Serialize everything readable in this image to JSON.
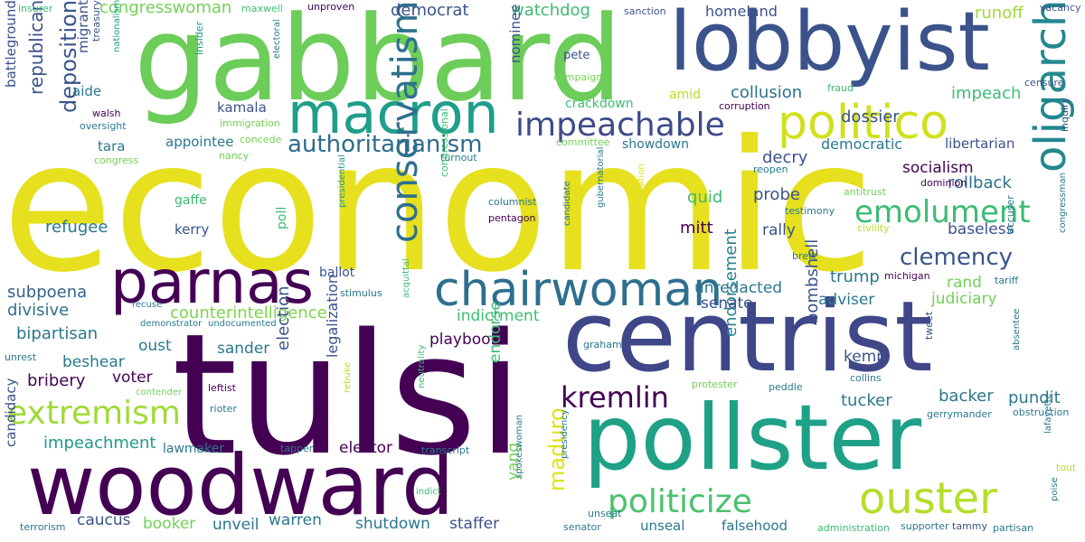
{
  "word_cloud": {
    "words": [
      {
        "text": "economic",
        "color": "#e6e01e"
      },
      {
        "text": "tulsi",
        "color": "#440154"
      },
      {
        "text": "gabbard",
        "color": "#6ccd59"
      },
      {
        "text": "centrist",
        "color": "#3f4788"
      },
      {
        "text": "pollster",
        "color": "#1fa187"
      },
      {
        "text": "woodward",
        "color": "#440154"
      },
      {
        "text": "lobbyist",
        "color": "#3b528b"
      },
      {
        "text": "parnas",
        "color": "#440154"
      },
      {
        "text": "macron",
        "color": "#1f9e89"
      },
      {
        "text": "chairwoman",
        "color": "#2e6f8e"
      },
      {
        "text": "politico",
        "color": "#d0e11c"
      },
      {
        "text": "ouster",
        "color": "#b5de2b"
      },
      {
        "text": "oligarch",
        "color": "#23888e"
      },
      {
        "text": "conservatism",
        "color": "#2d708e"
      },
      {
        "text": "impeachable",
        "color": "#3e4a89"
      },
      {
        "text": "extremism",
        "color": "#a0da39"
      },
      {
        "text": "politicize",
        "color": "#4ac16d"
      },
      {
        "text": "emolument",
        "color": "#3dbc74"
      },
      {
        "text": "kremlin",
        "color": "#440154"
      },
      {
        "text": "authoritarianism",
        "color": "#2f6b8e"
      },
      {
        "text": "clemency",
        "color": "#39568c"
      },
      {
        "text": "deposition",
        "color": "#3a548c"
      },
      {
        "text": "maduro",
        "color": "#dde318"
      },
      {
        "text": "republican",
        "color": "#3b528b"
      },
      {
        "text": "counterintelligence",
        "color": "#7fd34e"
      },
      {
        "text": "endorsement",
        "color": "#26828e"
      },
      {
        "text": "subpoena",
        "color": "#33638d"
      },
      {
        "text": "refugee",
        "color": "#2a788e"
      },
      {
        "text": "bipartisan",
        "color": "#2a788e"
      },
      {
        "text": "divisive",
        "color": "#2c728e"
      },
      {
        "text": "impeachment",
        "color": "#1f9a8a"
      },
      {
        "text": "bribery",
        "color": "#440154"
      },
      {
        "text": "election",
        "color": "#3b528b"
      },
      {
        "text": "democrat",
        "color": "#3b528b"
      },
      {
        "text": "watchdog",
        "color": "#3dbc74"
      },
      {
        "text": "congresswoman",
        "color": "#73d056"
      },
      {
        "text": "homeland",
        "color": "#3b528b"
      },
      {
        "text": "dossier",
        "color": "#3b528b"
      },
      {
        "text": "runoff",
        "color": "#a0da39"
      },
      {
        "text": "collusion",
        "color": "#2d708e"
      },
      {
        "text": "impeach",
        "color": "#3dbc74"
      },
      {
        "text": "libertarian",
        "color": "#3b528b"
      },
      {
        "text": "democratic",
        "color": "#2a788e"
      },
      {
        "text": "socialism",
        "color": "#440154"
      },
      {
        "text": "rollback",
        "color": "#2d708e"
      },
      {
        "text": "baseless",
        "color": "#3b528b"
      },
      {
        "text": "decry",
        "color": "#3b528b"
      },
      {
        "text": "probe",
        "color": "#3b528b"
      },
      {
        "text": "quid",
        "color": "#3dbc74"
      },
      {
        "text": "rally",
        "color": "#3b528b"
      },
      {
        "text": "mitt",
        "color": "#440154"
      },
      {
        "text": "trump",
        "color": "#2a788e"
      },
      {
        "text": "adviser",
        "color": "#2a788e"
      },
      {
        "text": "judiciary",
        "color": "#73d056"
      },
      {
        "text": "rand",
        "color": "#73d056"
      },
      {
        "text": "senate",
        "color": "#3b528b"
      },
      {
        "text": "unredacted",
        "color": "#2a788e"
      },
      {
        "text": "indictment",
        "color": "#3dbc74"
      },
      {
        "text": "playbook",
        "color": "#440154"
      },
      {
        "text": "endorse",
        "color": "#3dbc74"
      },
      {
        "text": "legalization",
        "color": "#3b528b"
      },
      {
        "text": "bombshell",
        "color": "#3b528b"
      },
      {
        "text": "kemp",
        "color": "#3b528b"
      },
      {
        "text": "tucker",
        "color": "#2a788e"
      },
      {
        "text": "backer",
        "color": "#2a788e"
      },
      {
        "text": "pundit",
        "color": "#2a788e"
      },
      {
        "text": "elector",
        "color": "#440154"
      },
      {
        "text": "voter",
        "color": "#440154"
      },
      {
        "text": "beshear",
        "color": "#2a788e"
      },
      {
        "text": "oust",
        "color": "#2a788e"
      },
      {
        "text": "sander",
        "color": "#2a788e"
      },
      {
        "text": "booker",
        "color": "#73d056"
      },
      {
        "text": "caucus",
        "color": "#3b528b"
      },
      {
        "text": "unveil",
        "color": "#2a788e"
      },
      {
        "text": "warren",
        "color": "#2a788e"
      },
      {
        "text": "shutdown",
        "color": "#2a788e"
      },
      {
        "text": "staffer",
        "color": "#3b528b"
      },
      {
        "text": "yang",
        "color": "#73d056"
      },
      {
        "text": "unseal",
        "color": "#2a788e"
      },
      {
        "text": "falsehood",
        "color": "#2a788e"
      },
      {
        "text": "candidacy",
        "color": "#3b528b"
      },
      {
        "text": "lawmaker",
        "color": "#2a788e"
      },
      {
        "text": "kamala",
        "color": "#3b528b"
      },
      {
        "text": "appointee",
        "color": "#2a788e"
      },
      {
        "text": "tara",
        "color": "#2a788e"
      },
      {
        "text": "aide",
        "color": "#2a788e"
      },
      {
        "text": "battleground",
        "color": "#3b528b"
      },
      {
        "text": "migrant",
        "color": "#3b528b"
      },
      {
        "text": "nominee",
        "color": "#3b528b"
      },
      {
        "text": "crackdown",
        "color": "#3dbc74"
      },
      {
        "text": "amid",
        "color": "#b5de2b"
      },
      {
        "text": "showdown",
        "color": "#2a788e"
      },
      {
        "text": "gaffe",
        "color": "#3dbc74"
      },
      {
        "text": "kerry",
        "color": "#3b528b"
      },
      {
        "text": "poll",
        "color": "#3dbc74"
      },
      {
        "text": "ballot",
        "color": "#3b528b"
      },
      {
        "text": "pete",
        "color": "#3b528b"
      },
      {
        "text": "insurer",
        "color": "#3dbc74"
      },
      {
        "text": "maxwell",
        "color": "#3dbc74"
      },
      {
        "text": "unproven",
        "color": "#440154"
      },
      {
        "text": "sanction",
        "color": "#3b528b"
      },
      {
        "text": "vacancy",
        "color": "#3b528b"
      },
      {
        "text": "treasury",
        "color": "#3b528b"
      },
      {
        "text": "nationalism",
        "color": "#1f9a8a"
      },
      {
        "text": "insider",
        "color": "#1f9a8a"
      },
      {
        "text": "electoral",
        "color": "#2a788e"
      },
      {
        "text": "campaign",
        "color": "#73d056"
      },
      {
        "text": "censure",
        "color": "#3b528b"
      },
      {
        "text": "fraud",
        "color": "#3dbc74"
      },
      {
        "text": "corruption",
        "color": "#440154"
      },
      {
        "text": "walsh",
        "color": "#440154"
      },
      {
        "text": "oversight",
        "color": "#2a788e"
      },
      {
        "text": "immigration",
        "color": "#73d056"
      },
      {
        "text": "concede",
        "color": "#73d056"
      },
      {
        "text": "committee",
        "color": "#73d056"
      },
      {
        "text": "congress",
        "color": "#73d056"
      },
      {
        "text": "nancy",
        "color": "#73d056"
      },
      {
        "text": "turnout",
        "color": "#2a788e"
      },
      {
        "text": "reopen",
        "color": "#2a788e"
      },
      {
        "text": "inquiry",
        "color": "#3b528b"
      },
      {
        "text": "dominion",
        "color": "#440154"
      },
      {
        "text": "antitrust",
        "color": "#73d056"
      },
      {
        "text": "testimony",
        "color": "#2a788e"
      },
      {
        "text": "congressional",
        "color": "#3dbc74"
      },
      {
        "text": "presidential",
        "color": "#1f9a8a"
      },
      {
        "text": "columnist",
        "color": "#2a788e"
      },
      {
        "text": "pentagon",
        "color": "#440154"
      },
      {
        "text": "candidate",
        "color": "#2a788e"
      },
      {
        "text": "gubernatorial",
        "color": "#2a788e"
      },
      {
        "text": "inauguration",
        "color": "#dde318"
      },
      {
        "text": "civility",
        "color": "#b5de2b"
      },
      {
        "text": "congressman",
        "color": "#2a788e"
      },
      {
        "text": "accuser",
        "color": "#2a788e"
      },
      {
        "text": "brett",
        "color": "#2a788e"
      },
      {
        "text": "michigan",
        "color": "#440154"
      },
      {
        "text": "tariff",
        "color": "#2a788e"
      },
      {
        "text": "stimulus",
        "color": "#2a788e"
      },
      {
        "text": "recuse",
        "color": "#2a788e"
      },
      {
        "text": "demonstrator",
        "color": "#2a788e"
      },
      {
        "text": "undocumented",
        "color": "#2a788e"
      },
      {
        "text": "acquittal",
        "color": "#3dbc74"
      },
      {
        "text": "graham",
        "color": "#2a788e"
      },
      {
        "text": "unrest",
        "color": "#2a788e"
      },
      {
        "text": "tweet",
        "color": "#3b528b"
      },
      {
        "text": "absentee",
        "color": "#2a788e"
      },
      {
        "text": "collins",
        "color": "#2a788e"
      },
      {
        "text": "protester",
        "color": "#73d056"
      },
      {
        "text": "peddle",
        "color": "#2a788e"
      },
      {
        "text": "contender",
        "color": "#73d056"
      },
      {
        "text": "leftist",
        "color": "#440154"
      },
      {
        "text": "rioter",
        "color": "#2a788e"
      },
      {
        "text": "rebuke",
        "color": "#b5de2b"
      },
      {
        "text": "neutrality",
        "color": "#3dbc74"
      },
      {
        "text": "gerrymander",
        "color": "#2a788e"
      },
      {
        "text": "obstruction",
        "color": "#2a788e"
      },
      {
        "text": "lafayette",
        "color": "#2a788e"
      },
      {
        "text": "tapper",
        "color": "#2a788e"
      },
      {
        "text": "transcript",
        "color": "#2a788e"
      },
      {
        "text": "indict",
        "color": "#3dbc74"
      },
      {
        "text": "spokeswoman",
        "color": "#2a788e"
      },
      {
        "text": "presidency",
        "color": "#2a788e"
      },
      {
        "text": "unseat",
        "color": "#2a788e"
      },
      {
        "text": "senator",
        "color": "#2a788e"
      },
      {
        "text": "administration",
        "color": "#3dbc74"
      },
      {
        "text": "supporter",
        "color": "#2a788e"
      },
      {
        "text": "tammy",
        "color": "#3b528b"
      },
      {
        "text": "partisan",
        "color": "#2a788e"
      },
      {
        "text": "poise",
        "color": "#2a788e"
      },
      {
        "text": "tout",
        "color": "#b5de2b"
      },
      {
        "text": "terrorism",
        "color": "#2a788e"
      }
    ]
  }
}
